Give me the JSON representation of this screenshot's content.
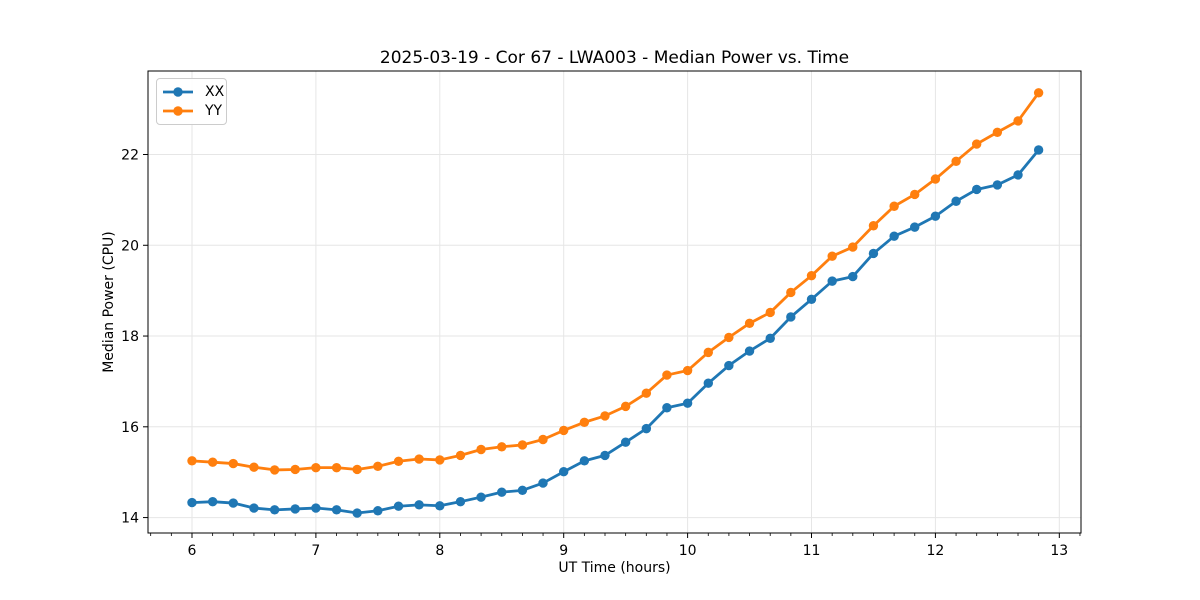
{
  "chart_data": {
    "type": "line",
    "title": "2025-03-19 - Cor 67 - LWA003 - Median Power vs. Time",
    "xlabel": "UT Time (hours)",
    "ylabel": "Median Power (CPU)",
    "xlim": [
      5.645,
      13.175
    ],
    "ylim": [
      13.66,
      23.84
    ],
    "xticks": [
      6,
      7,
      8,
      9,
      10,
      11,
      12,
      13
    ],
    "yticks": [
      14,
      16,
      18,
      20,
      22
    ],
    "grid": true,
    "grid_color": "#e6e6e6",
    "legend_position": "upper left",
    "x": [
      6.0,
      6.167,
      6.333,
      6.5,
      6.667,
      6.833,
      7.0,
      7.167,
      7.333,
      7.5,
      7.667,
      7.833,
      8.0,
      8.167,
      8.333,
      8.5,
      8.667,
      8.833,
      9.0,
      9.167,
      9.333,
      9.5,
      9.667,
      9.833,
      10.0,
      10.167,
      10.333,
      10.5,
      10.667,
      10.833,
      11.0,
      11.167,
      11.333,
      11.5,
      11.667,
      11.833,
      12.0,
      12.167,
      12.333,
      12.5,
      12.667,
      12.833
    ],
    "series": [
      {
        "name": "XX",
        "color": "#1f77b4",
        "values": [
          14.33,
          14.35,
          14.32,
          14.21,
          14.17,
          14.19,
          14.21,
          14.17,
          14.1,
          14.15,
          14.25,
          14.28,
          14.26,
          14.35,
          14.45,
          14.56,
          14.6,
          14.76,
          15.01,
          15.25,
          15.37,
          15.66,
          15.96,
          16.42,
          16.52,
          16.96,
          17.35,
          17.67,
          17.95,
          18.42,
          18.81,
          19.21,
          19.31,
          19.82,
          20.2,
          20.4,
          20.64,
          20.97,
          21.23,
          21.33,
          21.55,
          22.1
        ]
      },
      {
        "name": "YY",
        "color": "#ff7f0e",
        "values": [
          15.25,
          15.22,
          15.19,
          15.11,
          15.05,
          15.06,
          15.1,
          15.1,
          15.06,
          15.13,
          15.24,
          15.29,
          15.27,
          15.37,
          15.5,
          15.56,
          15.6,
          15.72,
          15.92,
          16.1,
          16.24,
          16.45,
          16.74,
          17.14,
          17.24,
          17.64,
          17.97,
          18.28,
          18.52,
          18.96,
          19.33,
          19.76,
          19.96,
          20.43,
          20.86,
          21.12,
          21.46,
          21.85,
          22.23,
          22.49,
          22.74,
          23.36
        ]
      }
    ]
  }
}
